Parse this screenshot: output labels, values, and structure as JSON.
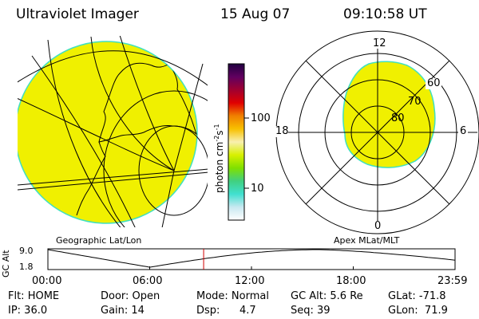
{
  "header": {
    "instrument": "Ultraviolet Imager",
    "date": "15 Aug 07",
    "time": "09:10:58 UT"
  },
  "colors": {
    "aurora_fill": "#f0f000",
    "limb_edge": "#40e0c0",
    "marker": "#d00000",
    "colorbar_stops": [
      "#ffffff",
      "#c8e8f0",
      "#40e0d0",
      "#40d080",
      "#80e000",
      "#d8f000",
      "#f8f0b0",
      "#f8c000",
      "#f08000",
      "#e00000",
      "#a00030",
      "#600060",
      "#200040"
    ]
  },
  "colorbar": {
    "unit_text": "photon cm",
    "unit_exp1": "-2",
    "unit_s": "s",
    "unit_exp2": "-1",
    "tick_100": "100",
    "tick_10": "10"
  },
  "left_panel": {
    "caption": "Geographic Lat/Lon"
  },
  "right_panel": {
    "caption": "Apex MLat/MLT",
    "mlt_labels": {
      "top": "12",
      "left": "18",
      "right": "6",
      "bottom": "0"
    },
    "mlat_labels": [
      "60",
      "70",
      "80"
    ]
  },
  "altitude_plot": {
    "ylabel": "GC Alt",
    "ymax": "9.0",
    "ymin": "1.8",
    "xticks": [
      "00:00",
      "06:00",
      "12:00",
      "18:00",
      "23:59"
    ],
    "current_time_hours": 9.18
  },
  "status": {
    "flt": "Flt: HOME",
    "ip": "IP: 36.0",
    "door": "Door: Open",
    "gain": "Gain: 14",
    "mode": "Mode: Normal",
    "dsp_label": "Dsp:",
    "dsp_value": "4.7",
    "gc_alt": "GC Alt: 5.6 Re",
    "seq": "Seq: 39",
    "glat": "GLat: -71.8",
    "glon": "GLon:  71.9"
  }
}
